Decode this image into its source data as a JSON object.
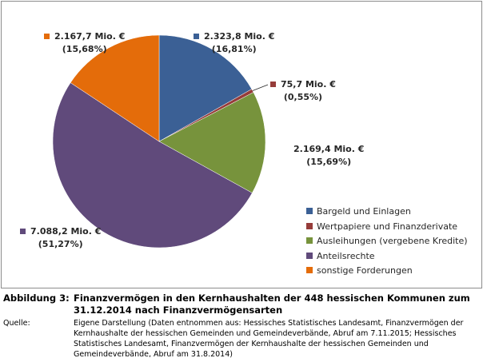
{
  "chart_data": {
    "type": "pie",
    "start": "top",
    "direction": "clockwise",
    "slices": [
      {
        "name": "Bargeld und Einlagen",
        "value": 2323.8,
        "label": "2.323,8 Mio. €",
        "pct": "(16,81%)",
        "color": "#3B6095"
      },
      {
        "name": "Wertpapiere und Finanzderivate",
        "value": 75.7,
        "label": "75,7 Mio. €",
        "pct": "(0,55%)",
        "color": "#963C3A"
      },
      {
        "name": "Ausleihungen (vergebene Kredite)",
        "value": 2169.4,
        "label": "2.169,4 Mio. €",
        "pct": "(15,69%)",
        "color": "#77933C"
      },
      {
        "name": "Anteilsrechte",
        "value": 7088.2,
        "label": "7.088,2 Mio. €",
        "pct": "(51,27%)",
        "color": "#604A7B"
      },
      {
        "name": "sonstige Forderungen",
        "value": 2167.7,
        "label": "2.167,7 Mio. €",
        "pct": "(15,68%)",
        "color": "#E46C0A"
      }
    ],
    "legend_position": "bottom-right"
  },
  "caption": {
    "label": "Abbildung 3:",
    "title": "Finanzvermögen in den Kernhaushalten der 448 hessischen Kommunen zum 31.12.2014 nach Finanzvermögensarten",
    "source_label": "Quelle:",
    "source": "Eigene Darstellung (Daten entnommen aus: Hessisches Statistisches Landesamt, Finanzvermögen der Kernhaushalte der hessischen Gemeinden und Gemeindeverbände, Abruf am 7.11.2015;  Hessisches Statistisches Landesamt, Finanzvermögen der Kernhaushalte der hessischen Gemeinden und Gemeindeverbände, Abruf am 31.8.2014)"
  }
}
